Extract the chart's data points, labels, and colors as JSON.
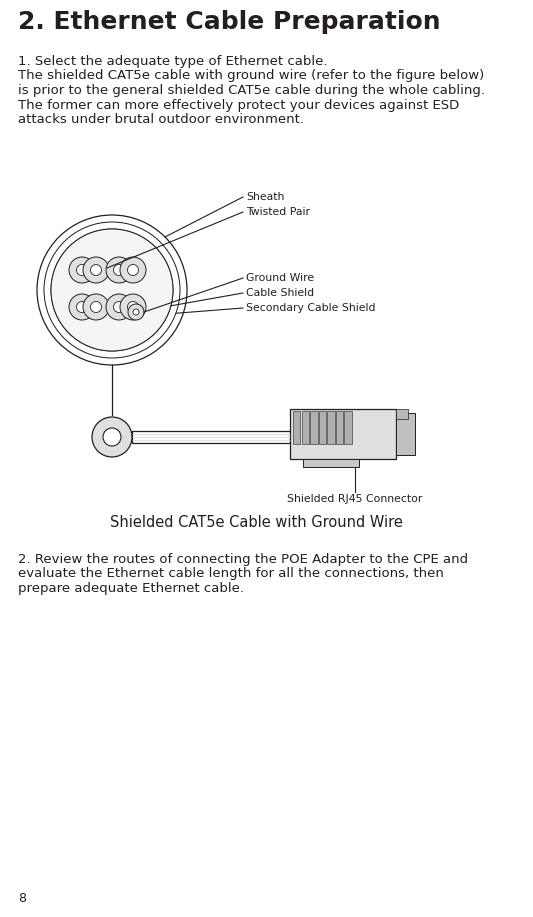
{
  "title": "2. Ethernet Cable Preparation",
  "title_fontsize": 18,
  "title_fontweight": "bold",
  "body_fontsize": 9.5,
  "label_fontsize": 7.8,
  "caption_fontsize": 10.5,
  "para2_fontsize": 9.5,
  "para1_line1": "1. Select the adequate type of Ethernet cable.",
  "para1_line2": "The shielded CAT5e cable with ground wire (refer to the figure below)",
  "para1_line3": "is prior to the general shielded CAT5e cable during the whole cabling.",
  "para1_line4": "The former can more effectively protect your devices against ESD",
  "para1_line5": "attacks under brutal outdoor environment.",
  "fig_caption": "Shielded CAT5e Cable with Ground Wire",
  "label_sheath": "Sheath",
  "label_twisted": "Twisted Pair",
  "label_ground": "Ground Wire",
  "label_shield": "Cable Shield",
  "label_secondary": "Secondary Cable Shield",
  "label_rj45": "Shielded RJ45 Connector",
  "para2_line1": "2. Review the routes of connecting the POE Adapter to the CPE and",
  "para2_line2": "evaluate the Ethernet cable length for all the connections, then",
  "para2_line3": "prepare adequate Ethernet cable.",
  "page_num": "8",
  "bg_color": "#ffffff",
  "text_color": "#231f20",
  "line_color": "#231f20",
  "gray_fill": "#e0e0e0",
  "white_fill": "#ffffff",
  "light_gray": "#f5f5f5"
}
